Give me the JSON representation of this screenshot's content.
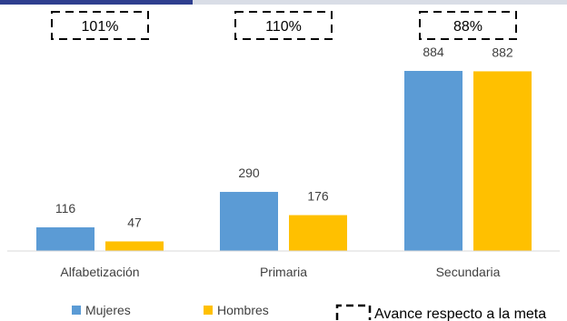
{
  "chart_data": {
    "type": "bar",
    "categories": [
      "Alfabetización",
      "Primaria",
      "Secundaria"
    ],
    "series": [
      {
        "name": "Mujeres",
        "values": [
          116,
          290,
          884
        ]
      },
      {
        "name": "Hombres",
        "values": [
          47,
          176,
          882
        ]
      }
    ],
    "goal_progress": [
      "101%",
      "110%",
      "88%"
    ],
    "legend_goal_label": "Avance respecto a la meta",
    "ylim": [
      0,
      1000
    ],
    "grid": false,
    "legend_position": "bottom"
  },
  "colors": {
    "Mujeres": "#5b9bd5",
    "Hombres": "#ffc000",
    "axis": "#d9d9d9",
    "header_accent": "#2f3f8f"
  }
}
